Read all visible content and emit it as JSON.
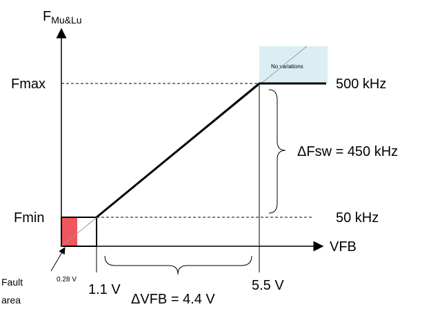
{
  "y_axis": {
    "label_main": "F",
    "label_sub": "Mu&Lu"
  },
  "x_axis": {
    "label": "VFB"
  },
  "levels": {
    "fmax_label": "Fmax",
    "fmin_label": "Fmin",
    "fmax_value": "500 kHz",
    "fmin_value": "50 kHz"
  },
  "x_ticks": {
    "v028": "0.28 V",
    "v11": "1.1 V",
    "v55": "5.5 V"
  },
  "annotations": {
    "delta_fsw": "ΔFsw = 450 kHz",
    "delta_vfb": "ΔVFB = 4.4 V",
    "no_variations": "No variations",
    "fault_line1": "Fault",
    "fault_line2": "area"
  },
  "colors": {
    "fault_fill": "#f0575c",
    "saturation_fill": "#dbeef4",
    "line": "#000000"
  },
  "chart_data": {
    "type": "line",
    "x": [
      0.28,
      1.1,
      5.5,
      6.7
    ],
    "y": [
      50,
      50,
      500,
      500
    ],
    "xlabel": "VFB",
    "ylabel": "FMu&Lu"
  }
}
